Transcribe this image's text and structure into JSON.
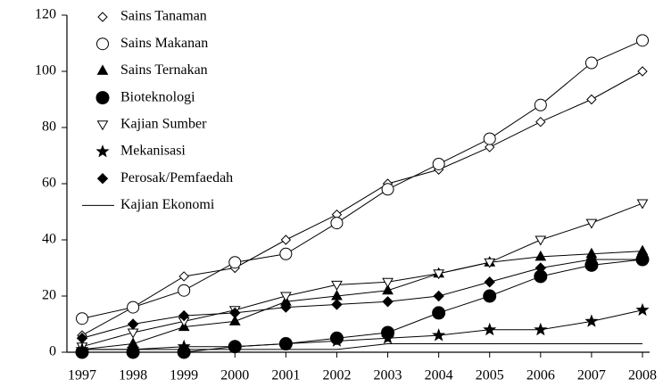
{
  "chart_data": {
    "type": "line",
    "categories": [
      "1997",
      "1998",
      "1999",
      "2000",
      "2001",
      "2002",
      "2003",
      "2004",
      "2005",
      "2006",
      "2007",
      "2008"
    ],
    "series": [
      {
        "name": "Sains Tanaman",
        "color": "#000000",
        "marker": "diamond-open",
        "values": [
          6,
          16,
          27,
          30,
          40,
          49,
          60,
          65,
          73,
          82,
          90,
          100
        ]
      },
      {
        "name": "Sains Makanan",
        "color": "#000000",
        "marker": "circle-open",
        "values": [
          12,
          16,
          22,
          32,
          35,
          46,
          58,
          67,
          76,
          88,
          103,
          111
        ]
      },
      {
        "name": "Sains Ternakan",
        "color": "#000000",
        "marker": "triangle-filled",
        "values": [
          1,
          3,
          9,
          11,
          18,
          20,
          22,
          28,
          32,
          34,
          35,
          36
        ]
      },
      {
        "name": "Bioteknologi",
        "color": "#000000",
        "marker": "circle-filled",
        "values": [
          0,
          0,
          0,
          2,
          3,
          5,
          7,
          14,
          20,
          27,
          31,
          33
        ]
      },
      {
        "name": "Kajian Sumber",
        "color": "#000000",
        "marker": "triangle-down-open",
        "values": [
          2,
          7,
          11,
          15,
          20,
          24,
          25,
          28,
          32,
          40,
          46,
          53
        ]
      },
      {
        "name": "Mekanisasi",
        "color": "#000000",
        "marker": "star",
        "values": [
          1,
          1,
          2,
          2,
          3,
          4,
          5,
          6,
          8,
          8,
          11,
          15
        ]
      },
      {
        "name": "Perosak/Pemfaedah",
        "color": "#000000",
        "marker": "diamond-filled",
        "values": [
          5,
          10,
          13,
          14,
          16,
          17,
          18,
          20,
          25,
          30,
          33,
          33
        ]
      },
      {
        "name": "Kajian Ekonomi",
        "color": "#000000",
        "marker": "none",
        "values": [
          1,
          1,
          1,
          1,
          1,
          1,
          3,
          3,
          3,
          3,
          3,
          3
        ]
      }
    ],
    "ylim": [
      0,
      120
    ],
    "yticks": [
      0,
      20,
      40,
      60,
      80,
      100,
      120
    ],
    "grid": false,
    "legend": "top-left"
  }
}
